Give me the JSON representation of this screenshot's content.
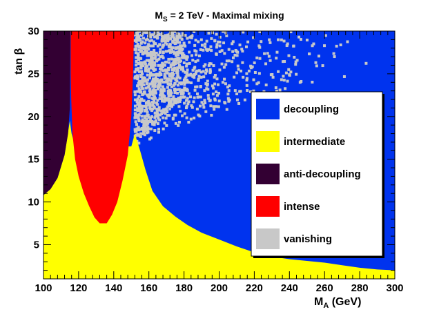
{
  "chart_data": {
    "type": "heatmap",
    "title_main": "M",
    "title_sub": "S",
    "title_rest": " = 2 TeV  -  Maximal mixing",
    "xlabel_main": "M",
    "xlabel_sub": "A",
    "xlabel_rest": " (GeV)",
    "ylabel": "tan β",
    "xlim": [
      100,
      300
    ],
    "ylim": [
      1,
      30
    ],
    "xticks": [
      100,
      120,
      140,
      160,
      180,
      200,
      220,
      240,
      260,
      280,
      300
    ],
    "yticks": [
      5,
      10,
      15,
      20,
      25,
      30
    ],
    "colors": {
      "decoupling": "#0033ee",
      "intermediate": "#ffff00",
      "anti_decoupling": "#330033",
      "intense": "#ff0000",
      "vanishing": "#c8c8c8",
      "frame": "#000000"
    },
    "legend": [
      {
        "label": "decoupling",
        "color": "#0033ee"
      },
      {
        "label": "intermediate",
        "color": "#ffff00"
      },
      {
        "label": "anti-decoupling",
        "color": "#330033"
      },
      {
        "label": "intense",
        "color": "#ff0000"
      },
      {
        "label": "vanishing",
        "color": "#c8c8c8"
      }
    ],
    "anti_decoupling_boundary": [
      [
        100,
        10.8
      ],
      [
        104,
        11.5
      ],
      [
        108,
        12.8
      ],
      [
        112,
        15.5
      ],
      [
        114,
        18.0
      ],
      [
        115,
        21.0
      ],
      [
        115.3,
        30
      ]
    ],
    "intermediate_upper_boundary": [
      [
        100,
        10.8
      ],
      [
        104,
        11.5
      ],
      [
        108,
        12.8
      ],
      [
        112,
        15.5
      ],
      [
        115,
        19.5
      ],
      [
        116,
        18.0
      ],
      [
        118,
        16.5
      ],
      [
        150,
        16.5
      ],
      [
        152,
        18.0
      ],
      [
        155,
        16.0
      ],
      [
        158,
        13.8
      ],
      [
        162,
        11.3
      ],
      [
        168,
        9.5
      ],
      [
        175,
        8.3
      ],
      [
        182,
        7.3
      ],
      [
        190,
        6.4
      ],
      [
        200,
        5.6
      ],
      [
        210,
        4.8
      ],
      [
        220,
        4.1
      ],
      [
        230,
        3.6
      ],
      [
        240,
        3.3
      ],
      [
        250,
        3.1
      ],
      [
        260,
        2.9
      ],
      [
        270,
        2.6
      ],
      [
        280,
        2.3
      ],
      [
        290,
        2.1
      ],
      [
        300,
        2.0
      ]
    ],
    "intense_boundary": [
      [
        115.5,
        30
      ],
      [
        115.5,
        25
      ],
      [
        115.8,
        22
      ],
      [
        116.5,
        18
      ],
      [
        118,
        15
      ],
      [
        120,
        13
      ],
      [
        123,
        11
      ],
      [
        126,
        9.5
      ],
      [
        129,
        8.2
      ],
      [
        132,
        7.5
      ],
      [
        136,
        7.5
      ],
      [
        139,
        8.5
      ],
      [
        142,
        10.0
      ],
      [
        145,
        12.5
      ],
      [
        148,
        15.5
      ],
      [
        150,
        20
      ],
      [
        151,
        25
      ],
      [
        151.5,
        30
      ]
    ],
    "vanishing_region": {
      "x": [
        152,
        300
      ],
      "y": [
        16,
        30
      ]
    }
  }
}
